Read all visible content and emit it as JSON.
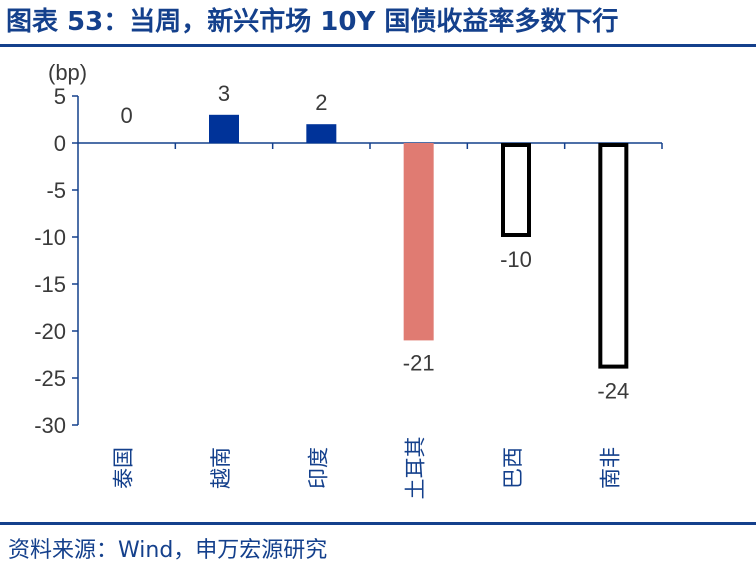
{
  "title": "图表 53：当周，新兴市场 10Y 国债收益率多数下行",
  "source": "资料来源：Wind，申万宏源研究",
  "chart_data": {
    "type": "bar",
    "unit_label": "(bp)",
    "categories": [
      "泰国",
      "越南",
      "印度",
      "土耳其",
      "巴西",
      "南非"
    ],
    "values": [
      0,
      3,
      2,
      -21,
      -10,
      -24
    ],
    "data_labels": [
      "0",
      "3",
      "2",
      "-21",
      "-10",
      "-24"
    ],
    "y_ticks": [
      5,
      0,
      -5,
      -10,
      -15,
      -20,
      -25,
      -30
    ],
    "ylim": [
      -30,
      5
    ],
    "bar_styles": [
      "filled-blue",
      "filled-blue",
      "filled-blue",
      "filled-salmon",
      "outline-black",
      "outline-black"
    ],
    "colors": {
      "blue": "#003399",
      "salmon": "#e07b72",
      "outline": "#000000",
      "axis": "#14408c"
    }
  }
}
